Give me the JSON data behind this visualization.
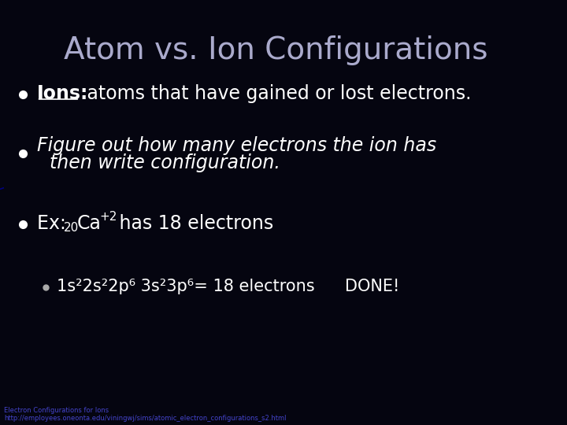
{
  "title": "Atom vs. Ion Configurations",
  "title_color": "#aaaacc",
  "title_fontsize": 28,
  "background_color": "#050510",
  "bullet_color": "#ffffff",
  "bullet1_label": "Ions:",
  "bullet1_rest": " atoms that have gained or lost electrons.",
  "bullet2_text": "Figure out how many electrons the ion has\n    then write configuration.",
  "bullet3_prefix": "Ex: ",
  "bullet3_sub": "20",
  "bullet3_main": "Ca",
  "bullet3_sup": "+2",
  "bullet3_suffix": " has 18 electrons",
  "sub_bullet_text1": "1s",
  "sub_bullet_text2": "²2s",
  "sub_bullet_text3": "²2p",
  "sub_bullet_text4": "⁶3s",
  "sub_bullet_text5": "²3p",
  "sub_bullet_text6": "⁶",
  "sub_bullet_rest": "  = 18 electrons     DONE!",
  "footer_line1": "Electron Configurations for Ions",
  "footer_line2": "http://employees.oneonta.edu/viningwj/sims/atomic_electron_configurations_s2.html",
  "footer_color": "#4444cc",
  "orb_color": "#0000aa",
  "glow_color": "#1111aa"
}
